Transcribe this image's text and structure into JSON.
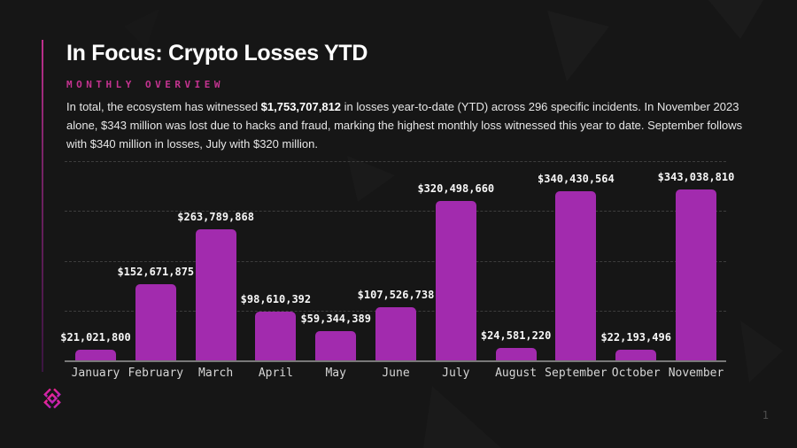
{
  "page": {
    "title": "In Focus: Crypto Losses YTD",
    "subtitle": "MONTHLY OVERVIEW",
    "paragraph": {
      "before_bold": "In total, the ecosystem has witnessed ",
      "bold": "$1,753,707,812",
      "after_bold": " in losses year-to-date (YTD) across 296 specific incidents. In November 2023 alone, $343 million was lost due to hacks and fraud, marking the highest monthly loss witnessed this year to date. September follows with $340 million in losses, July with $320 million."
    },
    "page_number": "1"
  },
  "colors": {
    "background": "#161616",
    "bar": "#a22bae",
    "accent_magenta": "#c43390",
    "gridline": "#3d3d3d",
    "axis_line": "#787878",
    "logo_gradient_top": "#f3268c",
    "logo_gradient_bottom": "#bc22b8"
  },
  "chart_data": {
    "type": "bar",
    "categories": [
      "January",
      "February",
      "March",
      "April",
      "May",
      "June",
      "July",
      "August",
      "September",
      "October",
      "November"
    ],
    "values": [
      21021800,
      152671875,
      263789868,
      98610392,
      59344389,
      107526738,
      320498660,
      24581220,
      340430564,
      22193496,
      343038810
    ],
    "value_labels": [
      "$21,021,800",
      "$152,671,875",
      "$263,789,868",
      "$98,610,392",
      "$59,344,389",
      "$107,526,738",
      "$320,498,660",
      "$24,581,220",
      "$340,430,564",
      "$22,193,496",
      "$343,038,810"
    ],
    "title": "",
    "xlabel": "",
    "ylabel": "",
    "ylim": [
      0,
      400000000
    ],
    "gridline_values": [
      100000000,
      200000000,
      300000000,
      400000000
    ],
    "grid": "horizontal-dashed",
    "legend": "none"
  }
}
